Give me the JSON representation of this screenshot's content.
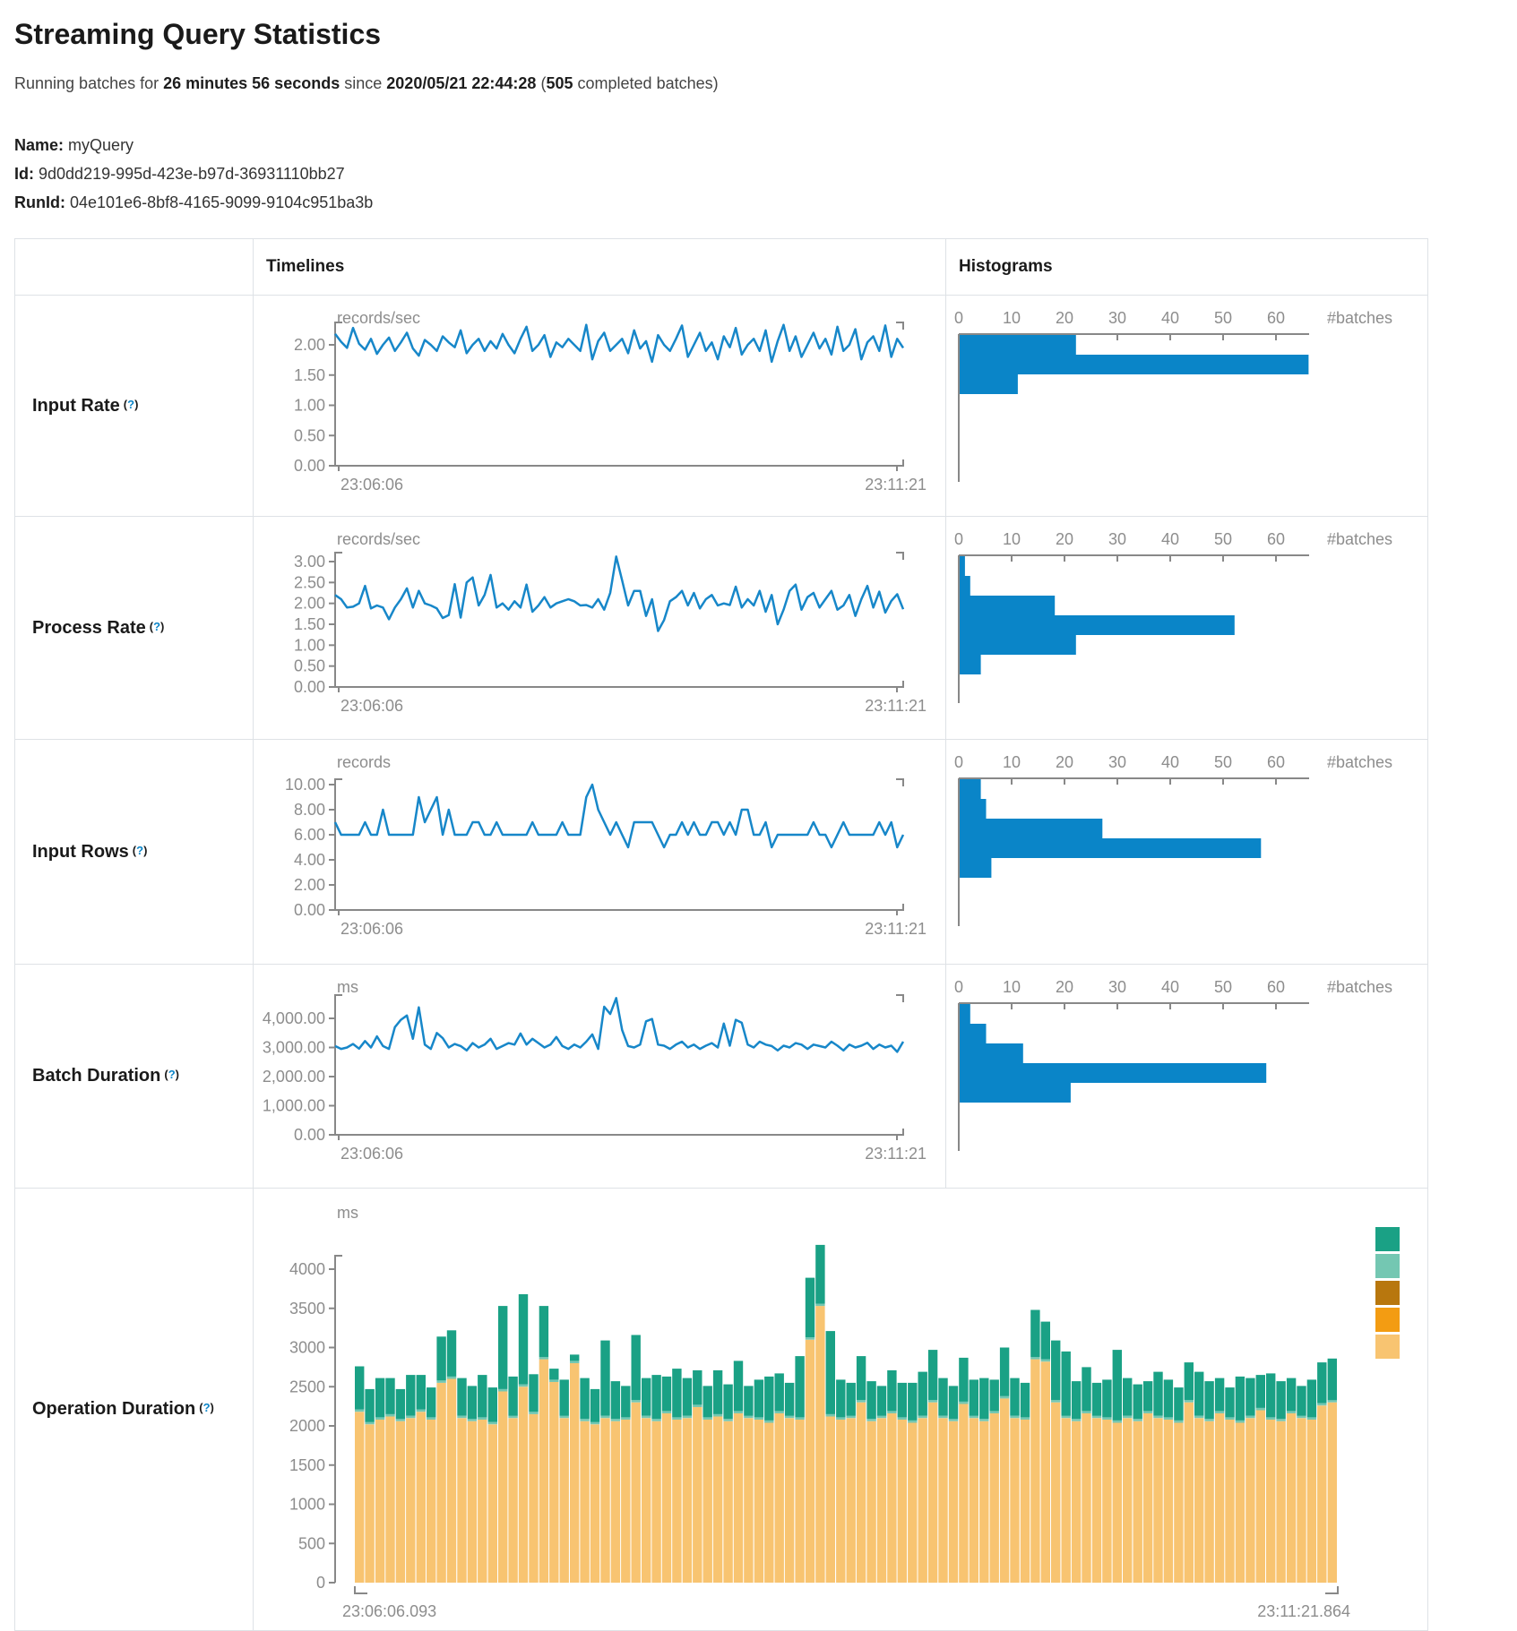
{
  "header": {
    "title": "Streaming Query Statistics",
    "running_prefix": "Running batches for",
    "duration": "26 minutes 56 seconds",
    "since_word": "since",
    "start_time": "2020/05/21 22:44:28",
    "batches_open": "(",
    "batches_count": "505",
    "batches_suffix": "completed batches)",
    "name_label": "Name:",
    "name_value": "myQuery",
    "id_label": "Id:",
    "id_value": "9d0dd219-995d-423e-b97d-36931110bb27",
    "runid_label": "RunId:",
    "runid_value": "04e101e6-8bf8-4165-9099-9104c951ba3b"
  },
  "table": {
    "col_timelines": "Timelines",
    "col_histograms": "Histograms",
    "help_open": "(",
    "help_q": "?",
    "help_close": ")",
    "labels": {
      "input_rate": "Input Rate",
      "process_rate": "Process Rate",
      "input_rows": "Input Rows",
      "batch_duration": "Batch Duration",
      "operation_duration": "Operation Duration"
    }
  },
  "colors": {
    "line": "#1787c9",
    "hist": "#0a85c8",
    "axis": "#888888",
    "tick_text": "#8d8d8d",
    "help": "#0c85c8",
    "border": "#dee2e6",
    "teal": "#1aa185",
    "light_teal": "#74c7b2",
    "dark_amber": "#b8770e",
    "orange": "#f39c12",
    "light_amber": "#f8c471"
  },
  "chart_data": {
    "x_range": {
      "start": "23:06:06",
      "end": "23:11:21"
    },
    "input_rate": {
      "type": "line",
      "unit": "records/sec",
      "y_ticks": [
        2,
        1.5,
        1,
        0.5,
        0
      ],
      "y_tick_labels": [
        "2.00",
        "1.50",
        "1.00",
        "0.50",
        "0.00"
      ],
      "tick_top_y": 55,
      "bracket_y": 30,
      "series": [
        2.18,
        2.05,
        1.95,
        2.28,
        2.02,
        1.92,
        2.1,
        1.85,
        2.0,
        2.12,
        1.9,
        2.04,
        2.2,
        1.94,
        1.82,
        2.08,
        2.0,
        1.9,
        2.14,
        2.04,
        1.96,
        2.24,
        1.86,
        2.0,
        2.1,
        1.9,
        2.06,
        1.94,
        2.18,
        2.0,
        1.86,
        2.1,
        2.3,
        1.9,
        2.0,
        2.16,
        1.8,
        2.04,
        1.96,
        2.1,
        2.0,
        1.9,
        2.33,
        1.76,
        2.06,
        2.2,
        1.9,
        2.0,
        2.1,
        1.86,
        2.24,
        1.94,
        2.06,
        1.72,
        2.16,
        2.0,
        1.9,
        2.1,
        2.32,
        1.8,
        2.0,
        2.2,
        1.9,
        2.04,
        1.76,
        2.14,
        1.96,
        2.28,
        1.84,
        2.0,
        2.1,
        1.9,
        2.24,
        1.72,
        2.06,
        2.33,
        1.9,
        2.14,
        1.8,
        2.0,
        2.2,
        1.94,
        2.1,
        1.84,
        2.3,
        1.9,
        2.0,
        2.26,
        1.76,
        2.04,
        2.14,
        1.9,
        2.32,
        1.8,
        2.1,
        1.95
      ]
    },
    "process_rate": {
      "type": "line",
      "unit": "records/sec",
      "y_ticks": [
        3,
        2.5,
        2,
        1.5,
        1,
        0.5,
        0
      ],
      "y_tick_labels": [
        "3.00",
        "2.50",
        "2.00",
        "1.50",
        "1.00",
        "0.50",
        "0.00"
      ],
      "tick_top_y": 50,
      "bracket_y": 40,
      "series": [
        2.2,
        2.1,
        1.9,
        1.92,
        2.0,
        2.42,
        1.88,
        1.95,
        1.9,
        1.62,
        1.9,
        2.1,
        2.36,
        1.9,
        2.3,
        2.0,
        1.95,
        1.88,
        1.65,
        1.72,
        2.46,
        1.66,
        2.5,
        2.62,
        1.95,
        2.2,
        2.68,
        1.9,
        2.0,
        1.85,
        2.05,
        1.9,
        2.45,
        1.8,
        1.95,
        2.15,
        1.9,
        2.0,
        2.05,
        2.1,
        2.05,
        1.95,
        1.96,
        1.9,
        2.1,
        1.85,
        2.25,
        3.12,
        2.55,
        1.95,
        2.3,
        2.3,
        1.7,
        2.1,
        1.34,
        1.6,
        2.05,
        2.15,
        2.3,
        1.95,
        2.25,
        1.88,
        2.1,
        2.2,
        1.95,
        2.0,
        1.96,
        2.4,
        1.9,
        2.1,
        1.95,
        2.3,
        1.8,
        2.2,
        1.5,
        1.85,
        2.3,
        2.45,
        1.85,
        2.15,
        2.25,
        1.9,
        2.1,
        2.3,
        1.85,
        1.95,
        2.2,
        1.7,
        2.1,
        2.42,
        1.9,
        2.28,
        1.78,
        2.06,
        2.22,
        1.86
      ]
    },
    "input_rows": {
      "type": "line",
      "unit": "records",
      "y_ticks": [
        10,
        8,
        6,
        4,
        2,
        0
      ],
      "y_tick_labels": [
        "10.00",
        "8.00",
        "6.00",
        "4.00",
        "2.00",
        "0.00"
      ],
      "tick_top_y": 50,
      "bracket_y": 44,
      "series": [
        7,
        6,
        6,
        6,
        6,
        7,
        6,
        6,
        8,
        6,
        6,
        6,
        6,
        6,
        9,
        7,
        8,
        9,
        6,
        8,
        6,
        6,
        6,
        7,
        7,
        6,
        6,
        7,
        6,
        6,
        6,
        6,
        6,
        7,
        6,
        6,
        6,
        6,
        7,
        6,
        6,
        6,
        9,
        10,
        8,
        7,
        6,
        7,
        6,
        5,
        7,
        7,
        7,
        7,
        6,
        5,
        6,
        6,
        7,
        6,
        7,
        6,
        6,
        7,
        7,
        6,
        7,
        6,
        8,
        8,
        6,
        6,
        7,
        5,
        6,
        6,
        6,
        6,
        6,
        6,
        7,
        6,
        6,
        5,
        6,
        7,
        6,
        6,
        6,
        6,
        6,
        7,
        6,
        7,
        5,
        6
      ]
    },
    "batch_duration": {
      "type": "line",
      "unit": "ms",
      "y_ticks": [
        4000,
        3000,
        2000,
        1000,
        0
      ],
      "y_tick_labels": [
        "4,000.00",
        "3,000.00",
        "2,000.00",
        "1,000.00",
        "0.00"
      ],
      "tick_top_y": 60,
      "bracket_y": 34,
      "series": [
        3050,
        2950,
        3000,
        3120,
        2960,
        3220,
        3000,
        3380,
        3050,
        2950,
        3700,
        3950,
        4100,
        3300,
        4380,
        3100,
        2950,
        3500,
        3320,
        3000,
        3120,
        3050,
        2900,
        3150,
        3000,
        3100,
        3300,
        2950,
        3050,
        3150,
        3100,
        3480,
        3100,
        3300,
        3150,
        3000,
        3100,
        3360,
        3050,
        2950,
        3100,
        3000,
        3200,
        3450,
        2950,
        4400,
        4150,
        4700,
        3600,
        3050,
        3000,
        3100,
        3900,
        3980,
        3100,
        3060,
        2950,
        3100,
        3200,
        3000,
        3100,
        2950,
        3060,
        3150,
        3000,
        3820,
        3060,
        3950,
        3850,
        3100,
        3000,
        3200,
        3100,
        3050,
        2900,
        3060,
        3000,
        3150,
        3100,
        2950,
        3100,
        3050,
        3000,
        3200,
        3060,
        2900,
        3100,
        3000,
        3060,
        3160,
        2950,
        3100,
        3000,
        3060,
        2850,
        3200
      ]
    },
    "histograms": {
      "axis_ticks": [
        0,
        10,
        20,
        30,
        40,
        50,
        60
      ],
      "axis_label": "#batches",
      "input_rate": [
        22,
        66,
        11
      ],
      "process_rate": [
        1,
        2,
        18,
        52,
        22,
        4
      ],
      "input_rows": [
        4,
        5,
        27,
        57,
        6
      ],
      "batch_duration": [
        2,
        5,
        12,
        58,
        21
      ]
    },
    "operation_duration": {
      "type": "stacked-bar",
      "unit": "ms",
      "y_ticks": [
        4000,
        3500,
        3000,
        2500,
        2000,
        1500,
        1000,
        500,
        0
      ],
      "y_tick_labels": [
        "4000",
        "3500",
        "3000",
        "2500",
        "2000",
        "1500",
        "1000",
        "500",
        "0"
      ],
      "x_start": "23:06:06.093",
      "x_end": "23:11:21.864",
      "legend_colors": [
        "#1aa185",
        "#74c7b2",
        "#b8770e",
        "#f39c12",
        "#f8c471"
      ],
      "mid_value": 30,
      "bars": [
        [
          2180,
          550
        ],
        [
          2020,
          420
        ],
        [
          2080,
          500
        ],
        [
          2120,
          460
        ],
        [
          2060,
          380
        ],
        [
          2100,
          520
        ],
        [
          2180,
          440
        ],
        [
          2080,
          380
        ],
        [
          2550,
          560
        ],
        [
          2600,
          590
        ],
        [
          2100,
          480
        ],
        [
          2060,
          420
        ],
        [
          2080,
          540
        ],
        [
          2020,
          440
        ],
        [
          2440,
          1060
        ],
        [
          2100,
          500
        ],
        [
          2500,
          1150
        ],
        [
          2150,
          480
        ],
        [
          2850,
          650
        ],
        [
          2560,
          140
        ],
        [
          2100,
          460
        ],
        [
          2800,
          80
        ],
        [
          2060,
          520
        ],
        [
          2020,
          420
        ],
        [
          2100,
          960
        ],
        [
          2060,
          480
        ],
        [
          2080,
          400
        ],
        [
          2300,
          830
        ],
        [
          2100,
          480
        ],
        [
          2060,
          560
        ],
        [
          2160,
          440
        ],
        [
          2080,
          620
        ],
        [
          2100,
          480
        ],
        [
          2240,
          440
        ],
        [
          2080,
          400
        ],
        [
          2120,
          560
        ],
        [
          2060,
          440
        ],
        [
          2160,
          640
        ],
        [
          2100,
          380
        ],
        [
          2080,
          480
        ],
        [
          2040,
          560
        ],
        [
          2160,
          480
        ],
        [
          2100,
          420
        ],
        [
          2080,
          780
        ],
        [
          3100,
          760
        ],
        [
          3530,
          750
        ],
        [
          2120,
          1060
        ],
        [
          2080,
          480
        ],
        [
          2100,
          420
        ],
        [
          2300,
          560
        ],
        [
          2060,
          480
        ],
        [
          2100,
          380
        ],
        [
          2160,
          520
        ],
        [
          2080,
          440
        ],
        [
          2040,
          480
        ],
        [
          2100,
          560
        ],
        [
          2300,
          640
        ],
        [
          2100,
          480
        ],
        [
          2060,
          420
        ],
        [
          2280,
          560
        ],
        [
          2100,
          460
        ],
        [
          2060,
          520
        ],
        [
          2160,
          400
        ],
        [
          2350,
          620
        ],
        [
          2100,
          480
        ],
        [
          2080,
          440
        ],
        [
          2850,
          600
        ],
        [
          2820,
          480
        ],
        [
          2300,
          760
        ],
        [
          2100,
          820
        ],
        [
          2060,
          480
        ],
        [
          2160,
          560
        ],
        [
          2100,
          420
        ],
        [
          2080,
          480
        ],
        [
          2040,
          900
        ],
        [
          2100,
          480
        ],
        [
          2060,
          440
        ],
        [
          2160,
          380
        ],
        [
          2100,
          560
        ],
        [
          2080,
          480
        ],
        [
          2040,
          420
        ],
        [
          2300,
          480
        ],
        [
          2100,
          560
        ],
        [
          2060,
          480
        ],
        [
          2160,
          420
        ],
        [
          2080,
          380
        ],
        [
          2040,
          560
        ],
        [
          2100,
          480
        ],
        [
          2200,
          420
        ],
        [
          2080,
          560
        ],
        [
          2060,
          480
        ],
        [
          2160,
          420
        ],
        [
          2100,
          380
        ],
        [
          2080,
          480
        ],
        [
          2260,
          520
        ],
        [
          2300,
          530
        ]
      ]
    }
  }
}
